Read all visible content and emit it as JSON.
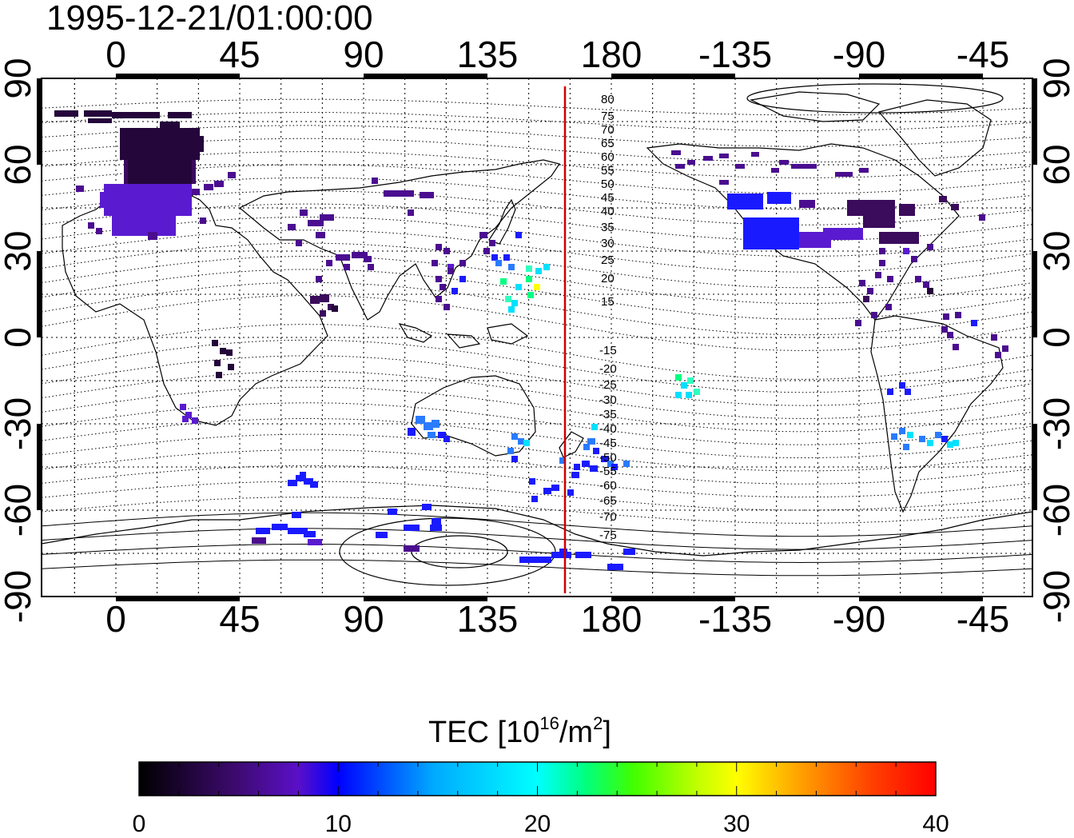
{
  "title": "1995-12-21/01:00:00",
  "map": {
    "lon_tick_labels": [
      "0",
      "45",
      "90",
      "135",
      "180",
      "-135",
      "-90",
      "-45"
    ],
    "lat_tick_labels": [
      "90",
      "60",
      "30",
      "0",
      "-30",
      "-60",
      "-90"
    ],
    "contour_labels_north": [
      "80",
      "75",
      "70",
      "65",
      "60",
      "55",
      "50",
      "45",
      "40",
      "35",
      "30",
      "25",
      "20",
      "15"
    ],
    "contour_labels_south": [
      "-15",
      "-20",
      "-25",
      "-30",
      "-35",
      "-40",
      "-45",
      "-50",
      "-55",
      "-60",
      "-65",
      "-70",
      "-75"
    ],
    "meridian_line_color": "#cc0000",
    "background_color": "#ffffff"
  },
  "colorbar": {
    "title_prefix": "TEC  [10",
    "title_sup1": "16",
    "title_mid": "/m",
    "title_sup2": "2",
    "title_suffix": "]",
    "tick_labels": [
      "0",
      "10",
      "20",
      "30",
      "40"
    ],
    "range": [
      0,
      40
    ],
    "colors": [
      "#000000",
      "#3d0a6e",
      "#5a10c8",
      "#0000ff",
      "#00aaff",
      "#00ffff",
      "#00ff80",
      "#40ff00",
      "#c0ff00",
      "#ffff00",
      "#ffa000",
      "#ff4000",
      "#ff0000"
    ]
  }
}
